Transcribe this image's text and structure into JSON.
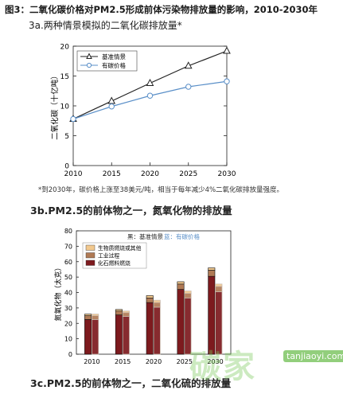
{
  "figure_title": "图3：二氧化碳价格对PM2.5形成前体污染物排放量的影响，2010-2030年",
  "footnote": "*到2030年，碳价格上涨至38美元/吨，相当于每年减少4%二氧化碳排放量强度。",
  "watermark": {
    "text": "碳家",
    "url": "tanjiaoyi.com"
  },
  "colors": {
    "baseline_line": "#222222",
    "carbon_line": "#5a8fc8",
    "bio": "#f2c98e",
    "industry": "#b07a55",
    "fossil": "#7d1a1e",
    "carbon_bar": "#c9b9ad"
  },
  "chart_data": [
    {
      "type": "line",
      "title": "3a.两种情景模拟的二氧化碳排放量*",
      "ylabel": "二氧化碳（十亿吨）",
      "xlabel": "",
      "x": [
        2010,
        2015,
        2020,
        2025,
        2030
      ],
      "ylim": [
        0,
        20
      ],
      "yticks": [
        0,
        5,
        10,
        15,
        20
      ],
      "grid": false,
      "legend_position": "top-left",
      "series": [
        {
          "name": "基准情景",
          "marker": "triangle",
          "values": [
            7.8,
            10.8,
            13.8,
            16.7,
            19.2
          ]
        },
        {
          "name": "有碳价格",
          "marker": "circle",
          "values": [
            7.8,
            9.9,
            11.7,
            13.2,
            14.1
          ]
        }
      ]
    },
    {
      "type": "bar",
      "title": "3b.PM2.5的前体物之一，氮氧化物的排放量",
      "ylabel": "氮氧化物（太克）",
      "xlabel": "",
      "categories": [
        2010,
        2015,
        2020,
        2025,
        2030
      ],
      "ylim": [
        0,
        80
      ],
      "yticks": [
        0,
        10,
        20,
        30,
        40,
        50,
        60,
        70,
        80
      ],
      "legend_header": {
        "baseline": "黑：基准情景",
        "carbon": "蓝：有碳价格"
      },
      "legend_position": "top-left",
      "stack_labels": [
        "生物质燃烧或其他",
        "工业过程",
        "化石燃料燃烧"
      ],
      "series": [
        {
          "name": "基准情景",
          "stacks": [
            {
              "label": "化石燃料燃烧",
              "values": [
                22.5,
                25.5,
                33.5,
                42.0,
                50.5
              ]
            },
            {
              "label": "工业过程",
              "values": [
                2.5,
                2.5,
                3.0,
                3.5,
                4.0
              ]
            },
            {
              "label": "生物质燃烧或其他",
              "values": [
                1.0,
                1.0,
                1.5,
                1.5,
                1.5
              ]
            }
          ]
        },
        {
          "name": "有碳价格",
          "stacks": [
            {
              "label": "化石燃料燃烧",
              "values": [
                22.5,
                24.5,
                30.5,
                36.5,
                40.5
              ]
            },
            {
              "label": "工业过程",
              "values": [
                2.5,
                2.5,
                3.0,
                3.0,
                3.5
              ]
            },
            {
              "label": "生物质燃烧或其他",
              "values": [
                1.0,
                1.0,
                1.5,
                1.5,
                1.5
              ]
            }
          ]
        }
      ]
    }
  ],
  "section_c_title": "3c.PM2.5的前体物之一，二氧化硫的排放量"
}
